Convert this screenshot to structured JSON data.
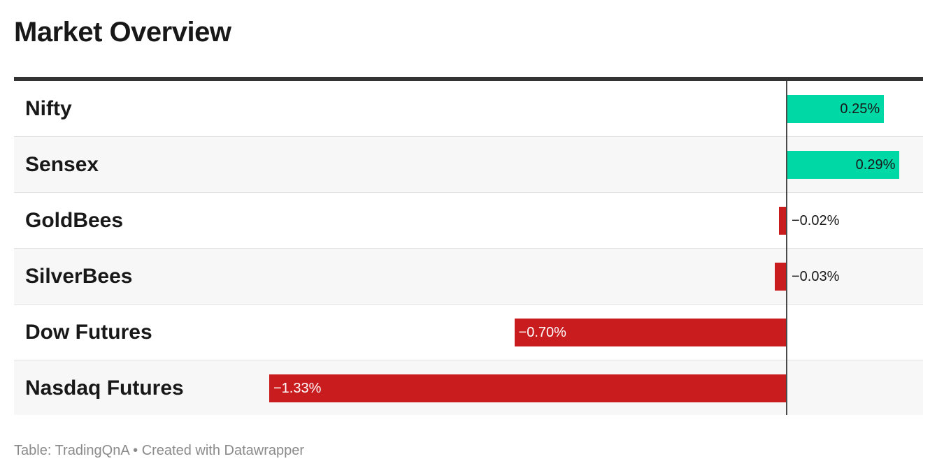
{
  "title": "Market Overview",
  "footer": {
    "source": "Table: TradingQnA",
    "separator": "•",
    "credit": "Created with Datawrapper"
  },
  "colors": {
    "positive": "#00d8a6",
    "negative": "#c81c1f",
    "axis": "#4a4a4a",
    "header_rule": "#333333"
  },
  "chart_data": {
    "type": "bar",
    "orientation": "horizontal",
    "unit": "%",
    "categories": [
      "Nifty",
      "Sensex",
      "GoldBees",
      "SilverBees",
      "Dow Futures",
      "Nasdaq Futures"
    ],
    "values": [
      0.25,
      0.29,
      -0.02,
      -0.03,
      -0.7,
      -1.33
    ],
    "labels": [
      "0.25%",
      "0.29%",
      "−0.02%",
      "−0.03%",
      "−0.70%",
      "−1.33%"
    ],
    "xlim": [
      -1.33,
      0.29
    ],
    "grid": false
  }
}
